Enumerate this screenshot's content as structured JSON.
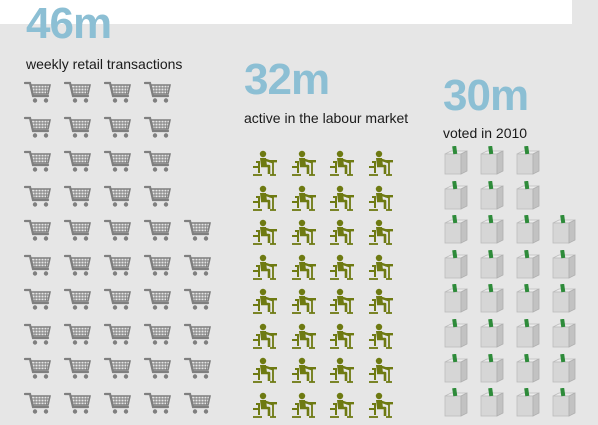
{
  "colors": {
    "background": "#e6e6e6",
    "number": "#8cbfd4",
    "cart": "#7f7f7f",
    "worker": "#6e7a12",
    "ballot_box": "#d6d6d6",
    "ballot": "#2e8b3a"
  },
  "stats": [
    {
      "id": "transactions",
      "value": "46m",
      "caption": "weekly retail transactions",
      "icon": "shopping-cart-icon",
      "rows": [
        4,
        4,
        4,
        4,
        5,
        5,
        5,
        5,
        5,
        5
      ]
    },
    {
      "id": "labour",
      "value": "32m",
      "caption": "active in the labour market",
      "icon": "worker-at-desk-icon",
      "rows": [
        4,
        4,
        4,
        4,
        4,
        4,
        4,
        4
      ]
    },
    {
      "id": "voters",
      "value": "30m",
      "caption": "voted in 2010",
      "icon": "ballot-box-icon",
      "rows": [
        3,
        3,
        4,
        4,
        4,
        4,
        4,
        4
      ]
    }
  ]
}
